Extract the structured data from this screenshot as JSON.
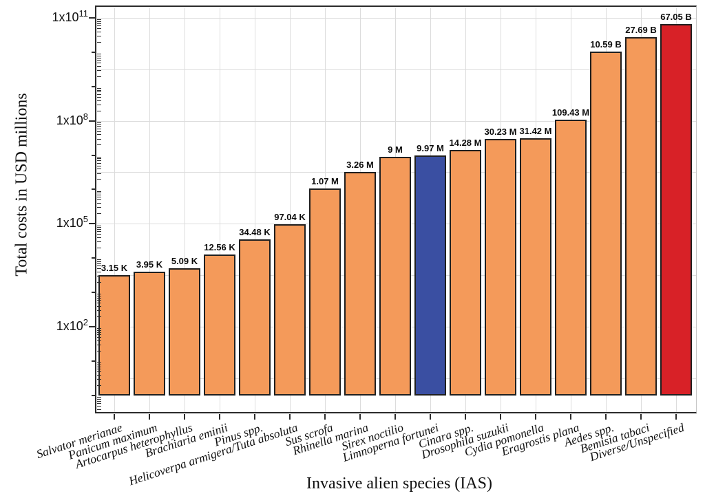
{
  "figure": {
    "y_axis_title": "Total costs in USD millions",
    "x_axis_title": "Invasive alien species (IAS)",
    "y_tick_labels": [
      {
        "base": "1x10",
        "exp": "11",
        "log": 11
      },
      {
        "base": "1x10",
        "exp": "8",
        "log": 8
      },
      {
        "base": "1x10",
        "exp": "5",
        "log": 5
      },
      {
        "base": "1x10",
        "exp": "2",
        "log": 2
      }
    ]
  },
  "chart_data": {
    "type": "bar",
    "title": "",
    "xlabel": "Invasive alien species (IAS)",
    "ylabel": "Total costs in USD millions",
    "y_scale": "log10",
    "ylim_log10": [
      -0.5,
      11.3
    ],
    "bar_baseline_value": 1,
    "grid": "on",
    "legend": "none",
    "categories": [
      "Salvator merianae",
      "Panicum maximum",
      "Artocarpus heterophyllus",
      "Brachiaria eminii",
      "Pinus spp.",
      "Helicoverpa armigera/Tuta absoluta",
      "Sus scrofa",
      "Rhinella marina",
      "Sirex noctilio",
      "Limnoperna fortunei",
      "Cinara spp.",
      "Drosophila suzukii",
      "Cydia pomonella",
      "Eragrostis plana",
      "Aedes spp.",
      "Bemisia tabaci",
      "Diverse/Unspecified"
    ],
    "values": [
      3150,
      3950,
      5090,
      12560,
      34480,
      97040,
      1070000,
      3260000,
      9000000,
      9970000,
      14280000,
      30230000,
      31420000,
      109430000,
      10590000000,
      27690000000,
      67050000000
    ],
    "value_labels": [
      "3.15 K",
      "3.95 K",
      "5.09 K",
      "12.56 K",
      "34.48 K",
      "97.04 K",
      "1.07 M",
      "3.26 M",
      "9 M",
      "9.97 M",
      "14.28 M",
      "30.23 M",
      "31.42 M",
      "109.43 M",
      "10.59 B",
      "27.69 B",
      "67.05 B"
    ],
    "bar_colors": [
      "#F49A5A",
      "#F49A5A",
      "#F49A5A",
      "#F49A5A",
      "#F49A5A",
      "#F49A5A",
      "#F49A5A",
      "#F49A5A",
      "#F49A5A",
      "#3A4FA2",
      "#F49A5A",
      "#F49A5A",
      "#F49A5A",
      "#F49A5A",
      "#F49A5A",
      "#F49A5A",
      "#D82127"
    ],
    "colors": {
      "bar_default": "#F49A5A",
      "bar_highlight_blue": "#3A4FA2",
      "bar_highlight_red": "#D82127",
      "bar_border": "#1F1F1F",
      "gridline": "#DCDCDC",
      "axis": "#2B2B2B"
    }
  }
}
